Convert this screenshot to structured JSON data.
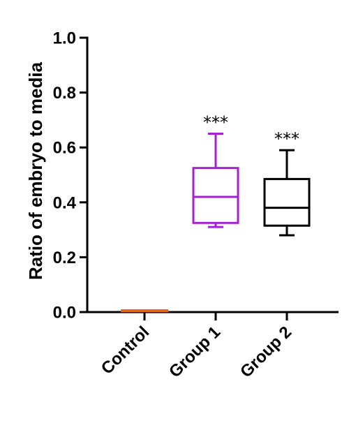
{
  "chart_data": {
    "type": "box",
    "ylabel": "Ratio of embryo to media",
    "ylim": [
      0,
      1
    ],
    "yticks": [
      "0.0",
      "0.2",
      "0.4",
      "0.6",
      "0.8",
      "1.0"
    ],
    "categories": [
      "Control",
      "Group 1",
      "Group 2"
    ],
    "boxes": [
      {
        "category": "Control",
        "min": 0.0,
        "q1": 0.0,
        "median": 0.005,
        "q3": 0.01,
        "max": 0.01,
        "color": "#e8651a",
        "significance": ""
      },
      {
        "category": "Group 1",
        "min": 0.31,
        "q1": 0.325,
        "median": 0.42,
        "q3": 0.525,
        "max": 0.65,
        "color": "#a51fd6",
        "significance": "***"
      },
      {
        "category": "Group 2",
        "min": 0.28,
        "q1": 0.315,
        "median": 0.38,
        "q3": 0.485,
        "max": 0.59,
        "color": "#000000",
        "significance": "***"
      }
    ],
    "grid": false,
    "legend": "none"
  }
}
